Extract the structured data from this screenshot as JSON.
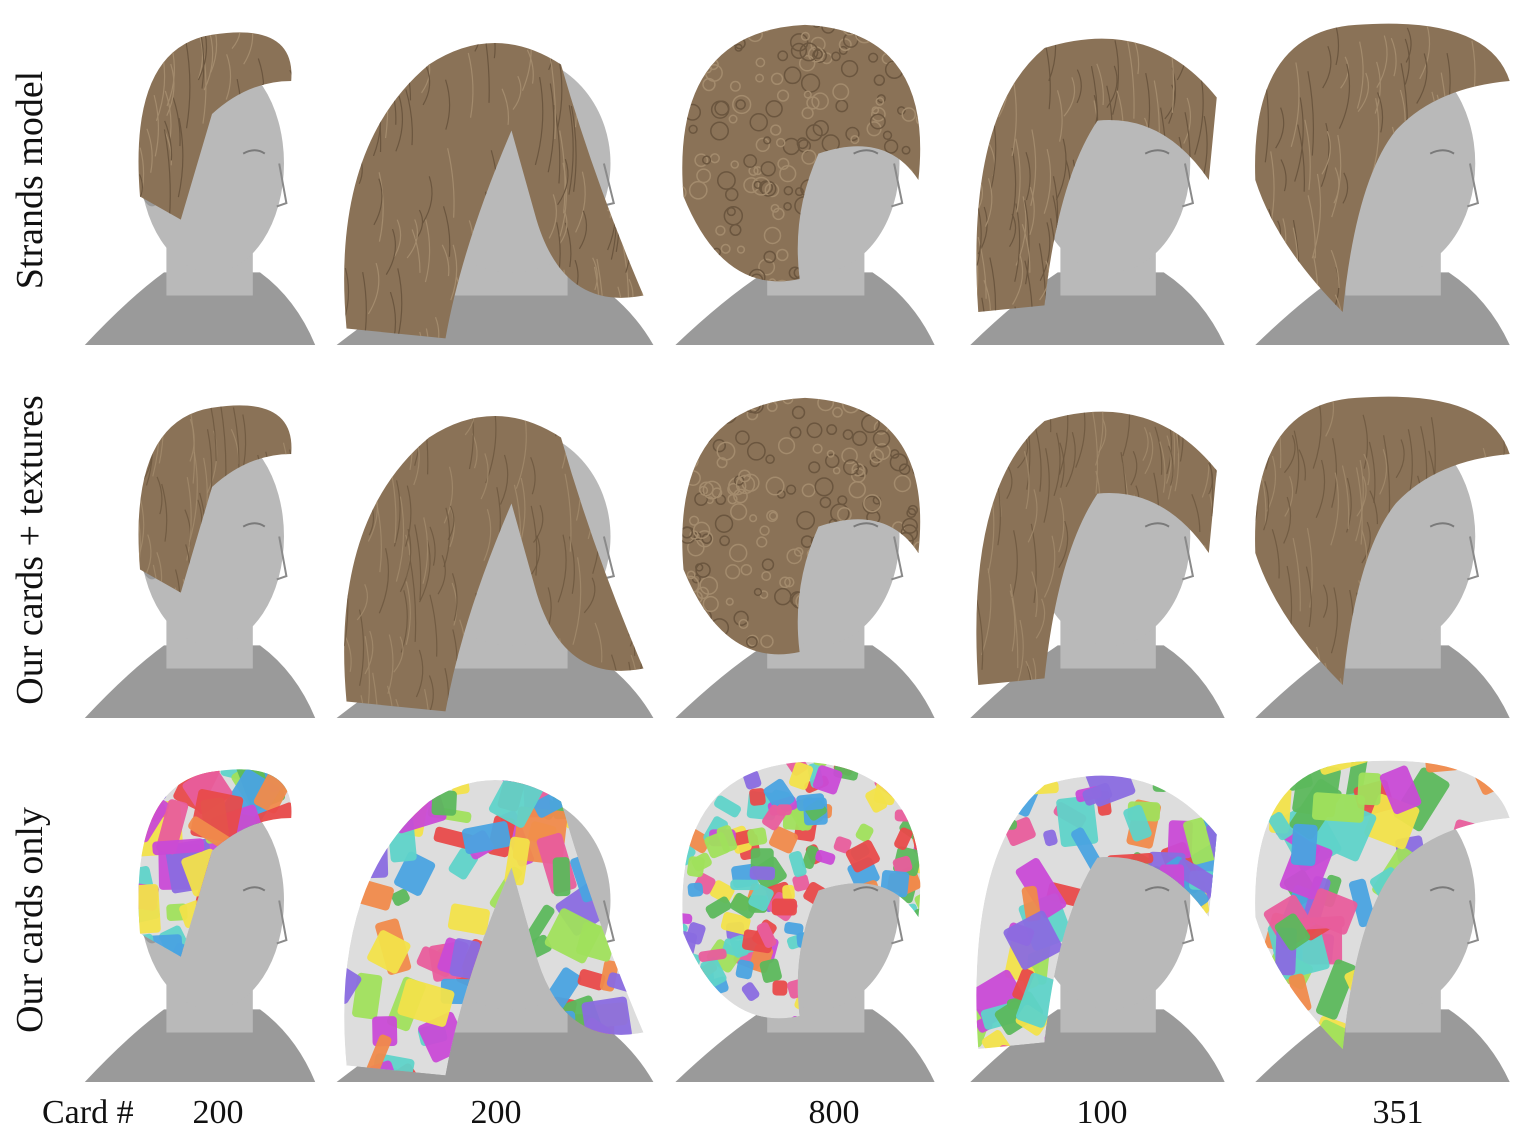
{
  "figure": {
    "row_labels": [
      "Strands model",
      "Our cards + textures",
      "Our cards only"
    ],
    "card_label": "Card #",
    "card_counts": [
      "200",
      "200",
      "800",
      "100",
      "351"
    ],
    "columns": [
      {
        "hairstyle": "short-swept-icon"
      },
      {
        "hairstyle": "long-wavy-icon"
      },
      {
        "hairstyle": "curly-afro-icon"
      },
      {
        "hairstyle": "medium-bob-icon"
      },
      {
        "hairstyle": "updo-messy-icon"
      }
    ],
    "colors": {
      "hair": "#8a7257",
      "hair_dark": "#6b563f",
      "skin": "#b9b9b9",
      "skin_shade": "#9a9a9a",
      "card_palette": [
        "#e85d9c",
        "#5fd3c9",
        "#f2e14a",
        "#8a6ce0",
        "#5cb85c",
        "#f08a4b",
        "#4aa3e0",
        "#c94ad6",
        "#e84a4a",
        "#a0e05c"
      ]
    }
  }
}
